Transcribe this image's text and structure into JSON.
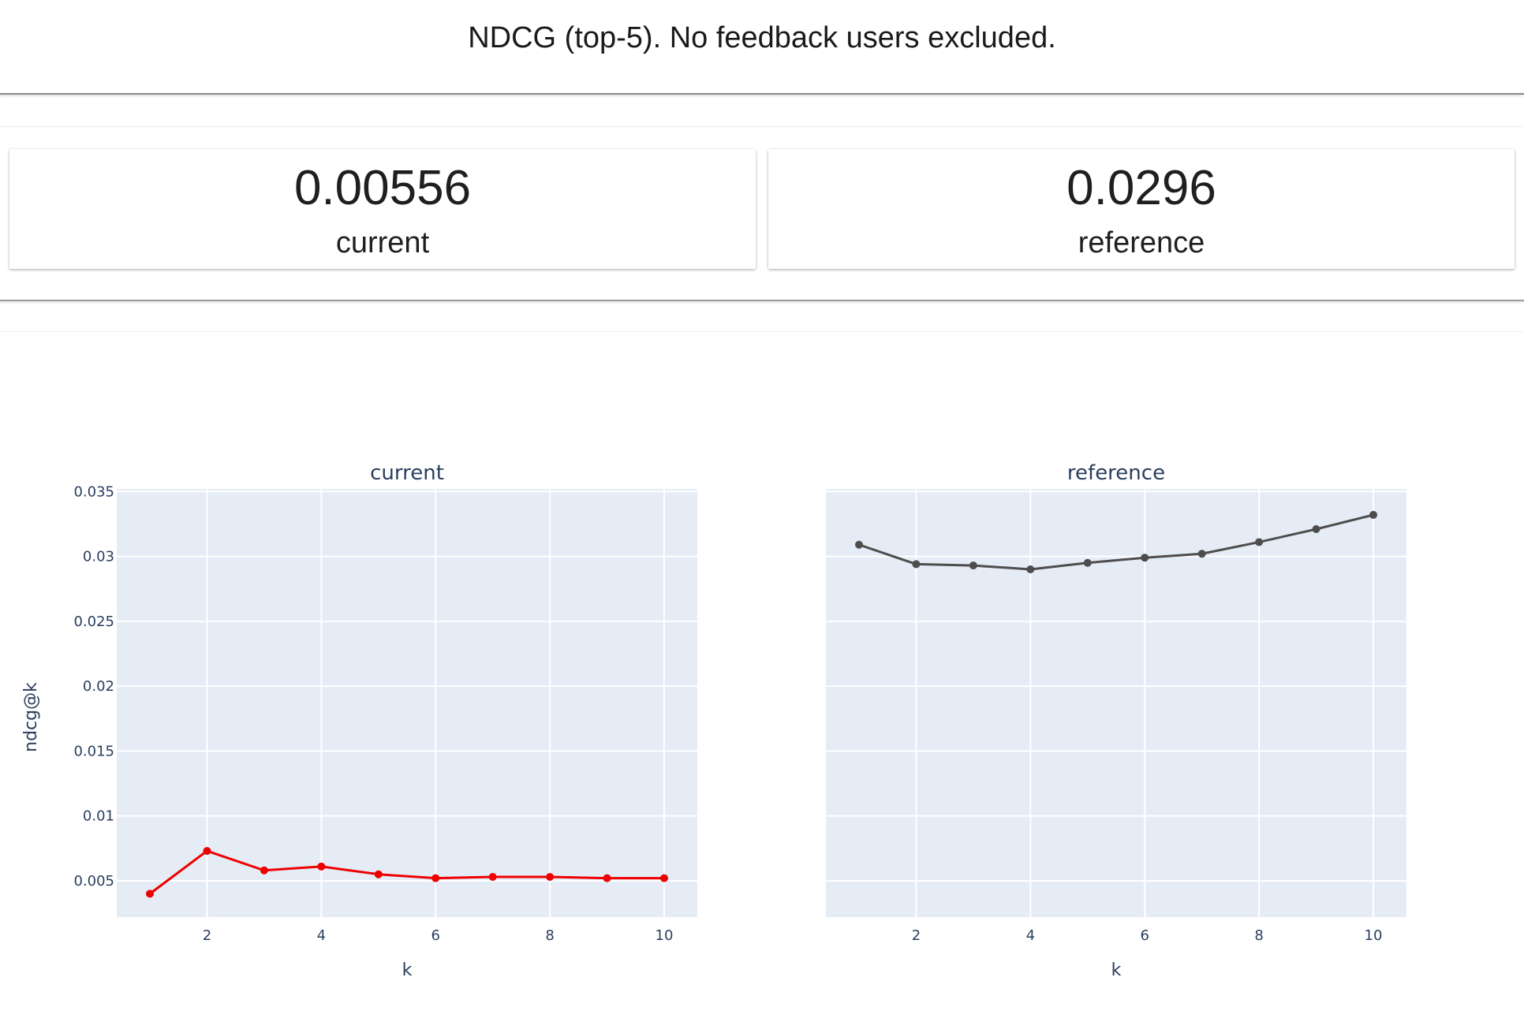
{
  "header": {
    "title": "NDCG (top-5). No feedback users excluded."
  },
  "counters": [
    {
      "value": "0.00556",
      "label": "current"
    },
    {
      "value": "0.0296",
      "label": "reference"
    }
  ],
  "chart_data": [
    {
      "type": "line",
      "title": "current",
      "xlabel": "k",
      "ylabel": "ndcg@k",
      "x": [
        1,
        2,
        3,
        4,
        5,
        6,
        7,
        8,
        9,
        10
      ],
      "series": [
        {
          "values": [
            0.004,
            0.0073,
            0.0058,
            0.0061,
            0.0055,
            0.0052,
            0.0053,
            0.0053,
            0.0052,
            0.0052
          ],
          "color": "#ee0000"
        }
      ],
      "xticks": [
        "2",
        "4",
        "6",
        "8",
        "10"
      ],
      "yticks": [
        "0.005",
        "0.01",
        "0.015",
        "0.02",
        "0.025",
        "0.03",
        "0.035"
      ],
      "xlim": [
        0.42,
        10.58
      ],
      "ylim": [
        0.0022,
        0.0352
      ],
      "grid": true,
      "plot_bgcolor": "#e5ecf6"
    },
    {
      "type": "line",
      "title": "reference",
      "xlabel": "k",
      "ylabel": "",
      "x": [
        1,
        2,
        3,
        4,
        5,
        6,
        7,
        8,
        9,
        10
      ],
      "series": [
        {
          "values": [
            0.0309,
            0.0294,
            0.0293,
            0.029,
            0.0295,
            0.0299,
            0.0302,
            0.0311,
            0.0321,
            0.0332
          ],
          "color": "#4d4d4d"
        }
      ],
      "xticks": [
        "2",
        "4",
        "6",
        "8",
        "10"
      ],
      "yticks": [],
      "xlim": [
        0.42,
        10.58
      ],
      "ylim": [
        0.0022,
        0.0352
      ],
      "grid": true,
      "plot_bgcolor": "#e5ecf6"
    }
  ],
  "colors": {
    "axis_text": "#2a3f5f",
    "gridline": "#ffffff"
  }
}
